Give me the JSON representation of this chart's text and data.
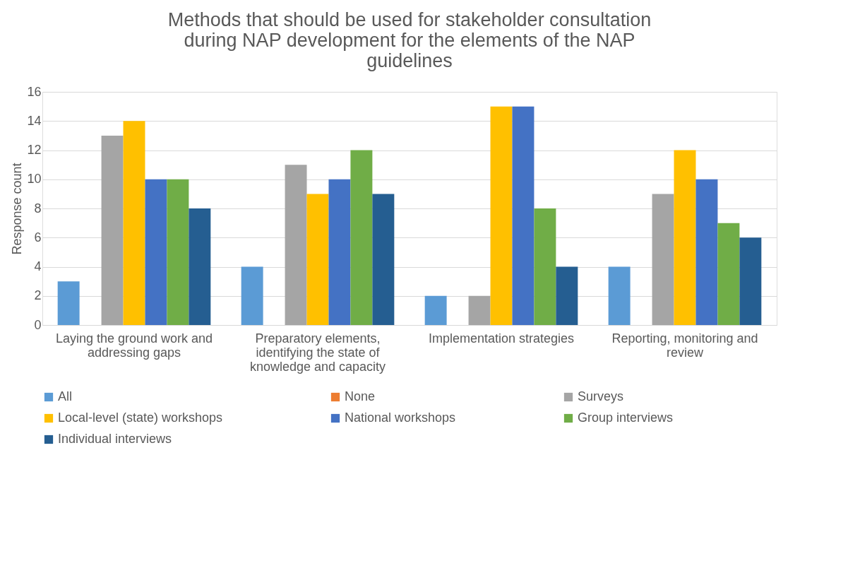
{
  "chart_data": {
    "type": "bar",
    "title": "Methods that should be used for stakeholder consultation during NAP development for the elements of the NAP guidelines",
    "ylabel": "Response count",
    "categories": [
      "Laying the ground work and addressing gaps",
      "Preparatory elements, identifying the state of knowledge and capacity",
      "Implementation strategies",
      "Reporting, monitoring and review"
    ],
    "series": [
      {
        "name": "All",
        "color": "#5b9bd5",
        "values": [
          3,
          4,
          2,
          4
        ]
      },
      {
        "name": "None",
        "color": "#ed7d31",
        "values": [
          0,
          0,
          0,
          0
        ]
      },
      {
        "name": "Surveys",
        "color": "#a5a5a5",
        "values": [
          13,
          11,
          2,
          9
        ]
      },
      {
        "name": "Local-level (state) workshops",
        "color": "#ffc000",
        "values": [
          14,
          9,
          15,
          12
        ]
      },
      {
        "name": "National workshops",
        "color": "#4472c4",
        "values": [
          10,
          10,
          15,
          10
        ]
      },
      {
        "name": "Group interviews",
        "color": "#70ad47",
        "values": [
          10,
          12,
          8,
          7
        ]
      },
      {
        "name": "Individual interviews",
        "color": "#255e91",
        "values": [
          8,
          9,
          4,
          6
        ]
      }
    ],
    "ylim": [
      0,
      16
    ],
    "yticks": [
      0,
      2,
      4,
      6,
      8,
      10,
      12,
      14,
      16
    ],
    "grid": "y",
    "legend": "bottom"
  }
}
